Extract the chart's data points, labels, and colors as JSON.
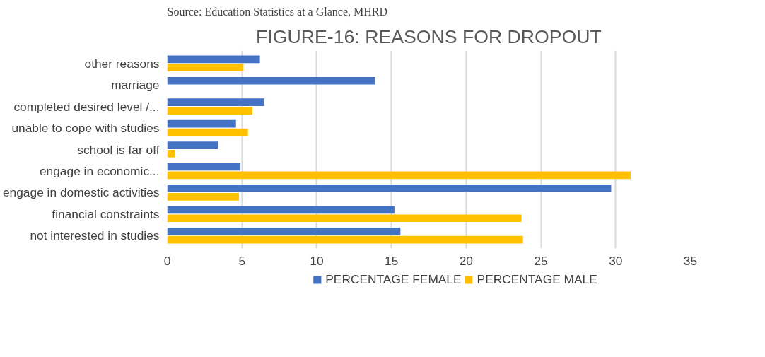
{
  "chart_data": {
    "type": "bar",
    "orientation": "horizontal",
    "title": "FIGURE-16: REASONS FOR DROPOUT",
    "annotations": [
      "Source: Education Statistics at a Glance, MHRD"
    ],
    "categories": [
      "other reasons",
      "marriage",
      "completed desired level /...",
      "unable to cope with studies",
      "school is far off",
      "engage in economic...",
      "engage in domestic activities",
      "financial constraints",
      "not interested in studies"
    ],
    "series": [
      {
        "name": "PERCENTAGE FEMALE",
        "color": "#4472c4",
        "values": [
          6.2,
          13.9,
          6.5,
          4.6,
          3.4,
          4.9,
          29.7,
          15.2,
          15.6
        ]
      },
      {
        "name": "PERCENTAGE MALE",
        "color": "#ffc000",
        "values": [
          5.1,
          null,
          5.7,
          5.4,
          0.5,
          31.0,
          4.8,
          23.7,
          23.8
        ]
      }
    ],
    "xlim": [
      0,
      35
    ],
    "xticks": [
      0,
      5,
      10,
      15,
      20,
      25,
      30,
      35
    ],
    "grid": "x",
    "legend": "bottom"
  }
}
